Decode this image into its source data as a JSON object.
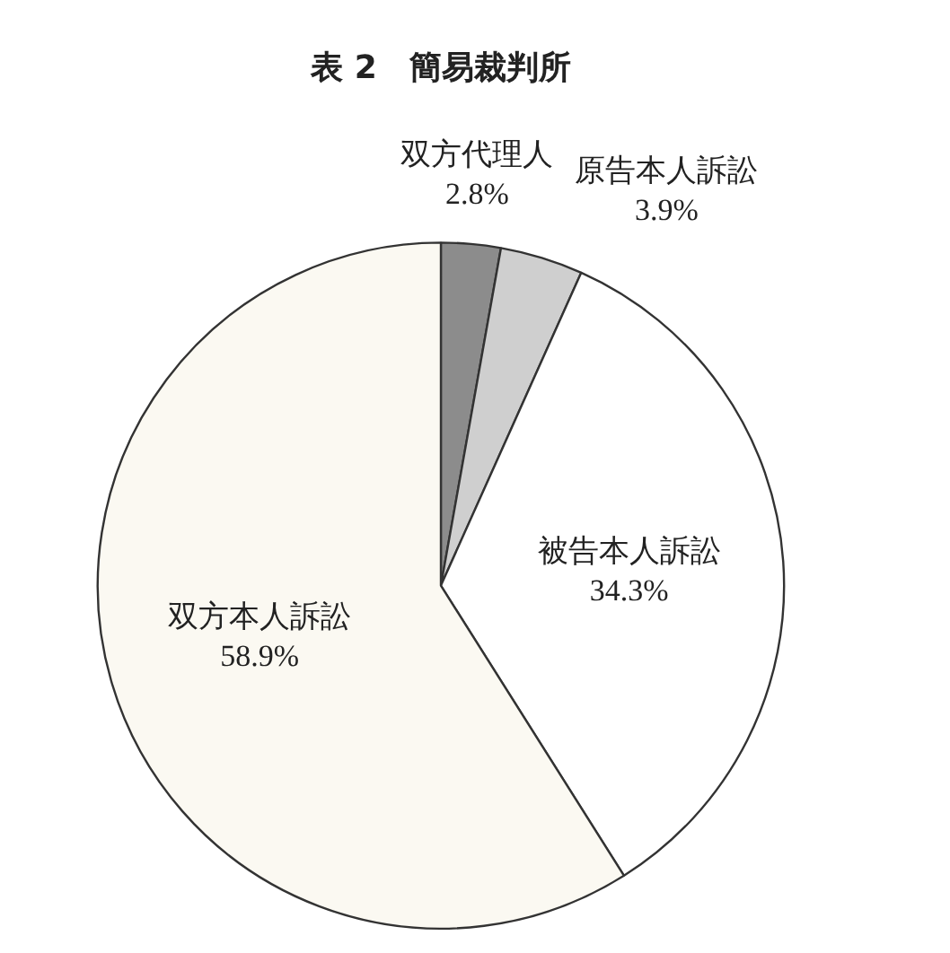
{
  "chart_data": {
    "type": "pie",
    "title": "表 2　簡易裁判所",
    "categories": [
      "双方代理人",
      "原告本人訴訟",
      "被告本人訴訟",
      "双方本人訴訟"
    ],
    "values": [
      2.8,
      3.9,
      34.3,
      58.9
    ],
    "colors": [
      "#8c8c8c",
      "#cfcfcf",
      "#ffffff",
      "#fbf9f2"
    ],
    "value_labels": [
      "2.8%",
      "3.9%",
      "34.3%",
      "58.9%"
    ],
    "legend": false
  }
}
